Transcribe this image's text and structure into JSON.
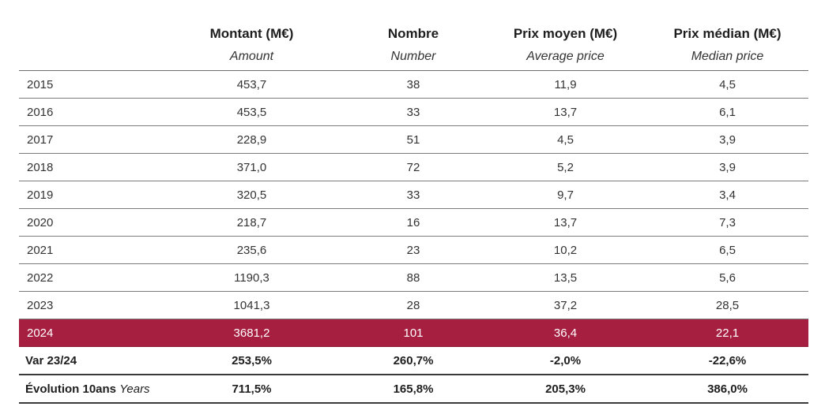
{
  "chart_data": {
    "type": "table",
    "highlight_color": "#A61E40",
    "columns": [
      {
        "fr": "Montant (M€)",
        "en": "Amount"
      },
      {
        "fr": "Nombre",
        "en": "Number"
      },
      {
        "fr": "Prix moyen (M€)",
        "en": "Average price"
      },
      {
        "fr": "Prix médian (M€)",
        "en": "Median price"
      }
    ],
    "rows": [
      {
        "year": "2015",
        "values": [
          "453,7",
          "38",
          "11,9",
          "4,5"
        ]
      },
      {
        "year": "2016",
        "values": [
          "453,5",
          "33",
          "13,7",
          "6,1"
        ]
      },
      {
        "year": "2017",
        "values": [
          "228,9",
          "51",
          "4,5",
          "3,9"
        ]
      },
      {
        "year": "2018",
        "values": [
          "371,0",
          "72",
          "5,2",
          "3,9"
        ]
      },
      {
        "year": "2019",
        "values": [
          "320,5",
          "33",
          "9,7",
          "3,4"
        ]
      },
      {
        "year": "2020",
        "values": [
          "218,7",
          "16",
          "13,7",
          "7,3"
        ]
      },
      {
        "year": "2021",
        "values": [
          "235,6",
          "23",
          "10,2",
          "6,5"
        ]
      },
      {
        "year": "2022",
        "values": [
          "1190,3",
          "88",
          "13,5",
          "5,6"
        ]
      },
      {
        "year": "2023",
        "values": [
          "1041,3",
          "28",
          "37,2",
          "28,5"
        ]
      },
      {
        "year": "2024",
        "values": [
          "3681,2",
          "101",
          "36,4",
          "22,1"
        ],
        "highlight": true
      }
    ],
    "summary": [
      {
        "label": "Var 23/24",
        "values": [
          "253,5%",
          "260,7%",
          "-2,0%",
          "-22,6%"
        ]
      },
      {
        "label": "Évolution 10ans",
        "label_suffix": "Years",
        "values": [
          "711,5%",
          "165,8%",
          "205,3%",
          "386,0%"
        ]
      }
    ]
  }
}
